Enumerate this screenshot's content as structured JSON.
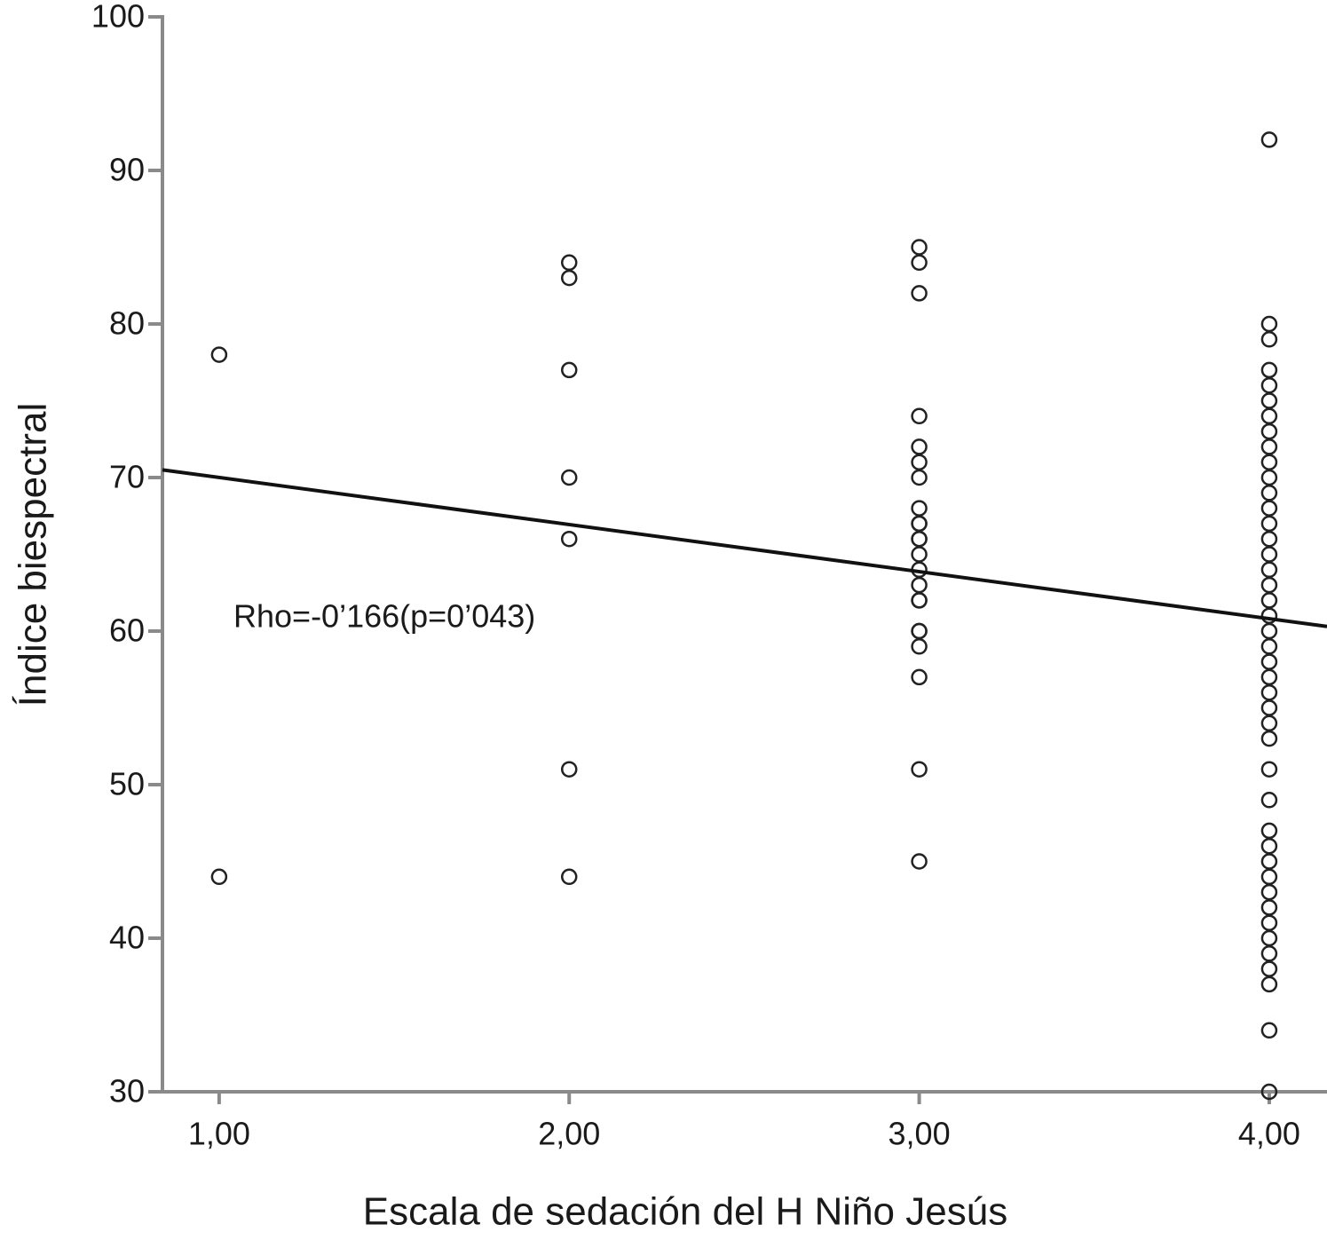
{
  "chart_data": {
    "type": "scatter",
    "x_label": "Escala de sedación del H Niño Jesús",
    "y_label": "Índice biespectral",
    "annotation": "Rho=-0’166(p=0’043)",
    "x": [
      1,
      1,
      2,
      2,
      2,
      2,
      2,
      2,
      2,
      3,
      3,
      3,
      3,
      3,
      3,
      3,
      3,
      3,
      3,
      3,
      3,
      3,
      3,
      3,
      3,
      3,
      3,
      3,
      3,
      3,
      3,
      3,
      4,
      4,
      4,
      4,
      4,
      4,
      4,
      4,
      4,
      4,
      4,
      4,
      4,
      4,
      4,
      4,
      4,
      4,
      4,
      4,
      4,
      4,
      4,
      4,
      4,
      4,
      4,
      4,
      4,
      4,
      4,
      4,
      4,
      4,
      4,
      4,
      4,
      4,
      4,
      4,
      4,
      4,
      4
    ],
    "values": [
      78,
      44,
      84,
      83,
      77,
      70,
      66,
      51,
      44,
      85,
      84,
      82,
      74,
      72,
      71,
      70,
      68,
      67,
      67,
      66,
      66,
      65,
      64,
      63,
      62,
      62,
      60,
      60,
      59,
      57,
      51,
      45,
      92,
      80,
      79,
      77,
      76,
      75,
      74,
      73,
      72,
      71,
      70,
      69,
      68,
      67,
      66,
      65,
      64,
      63,
      62,
      61,
      60,
      59,
      58,
      57,
      56,
      55,
      54,
      53,
      51,
      49,
      47,
      46,
      45,
      44,
      43,
      42,
      41,
      40,
      39,
      38,
      37,
      34,
      30
    ],
    "color": "#222222",
    "fit": {
      "x": [
        0.838,
        4.165
      ],
      "values": [
        70.5,
        60.3
      ],
      "color": "#111111"
    },
    "xlim": [
      0.838,
      4.165
    ],
    "ylim": [
      30,
      100
    ],
    "xticks": [
      {
        "value": 1,
        "label": "1,00"
      },
      {
        "value": 2,
        "label": "2,00"
      },
      {
        "value": 3,
        "label": "3,00"
      },
      {
        "value": 4,
        "label": "4,00"
      }
    ],
    "yticks": [
      30,
      40,
      50,
      60,
      70,
      80,
      90,
      100
    ],
    "grid": false
  }
}
